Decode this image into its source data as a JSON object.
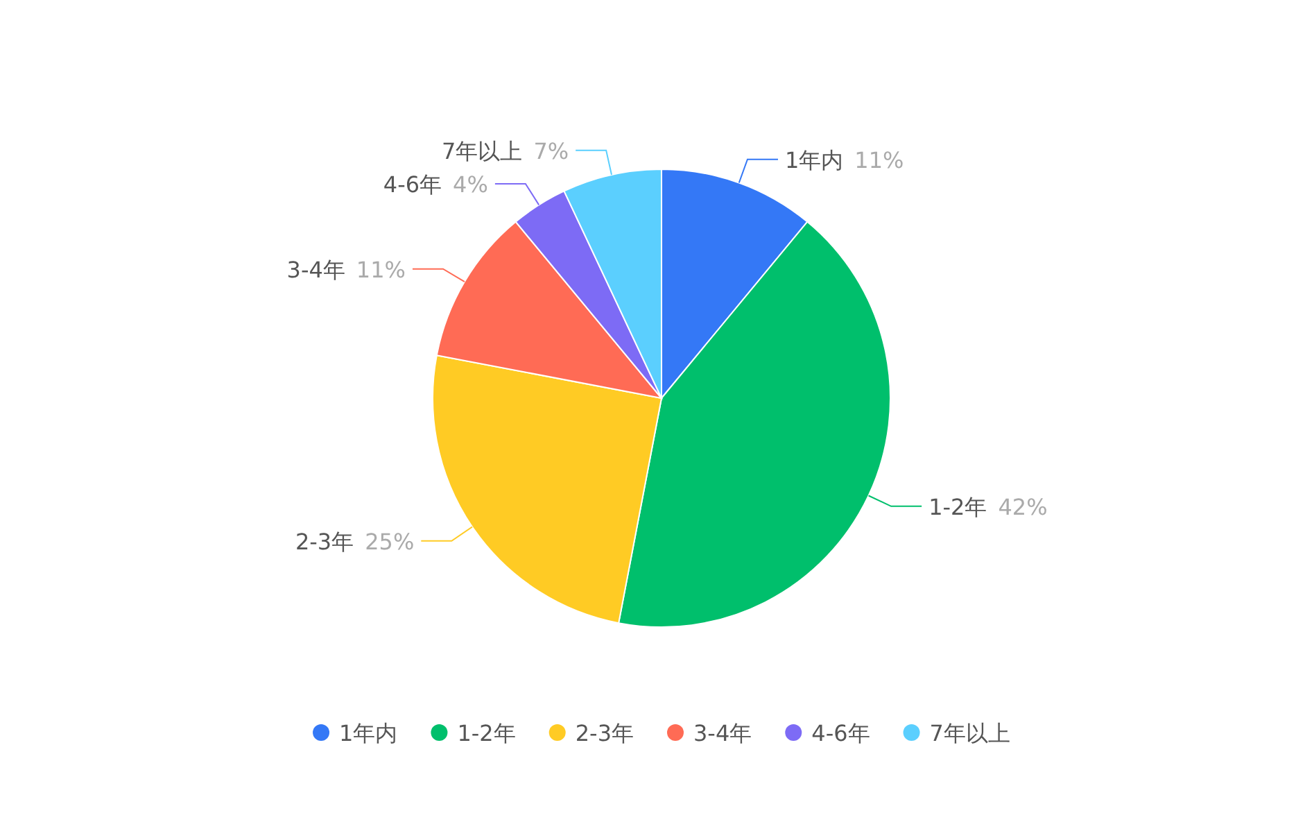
{
  "chart_data": {
    "type": "pie",
    "categories": [
      "1年内",
      "1-2年",
      "2-3年",
      "3-4年",
      "4-6年",
      "7年以上"
    ],
    "values": [
      11,
      42,
      25,
      11,
      4,
      7
    ],
    "colors": [
      "#3478f6",
      "#00bf6c",
      "#ffcb24",
      "#ff6b55",
      "#7d6bf5",
      "#5bcffe"
    ],
    "value_labels": [
      "11%",
      "42%",
      "25%",
      "11%",
      "4%",
      "7%"
    ],
    "legend": "bottom"
  }
}
